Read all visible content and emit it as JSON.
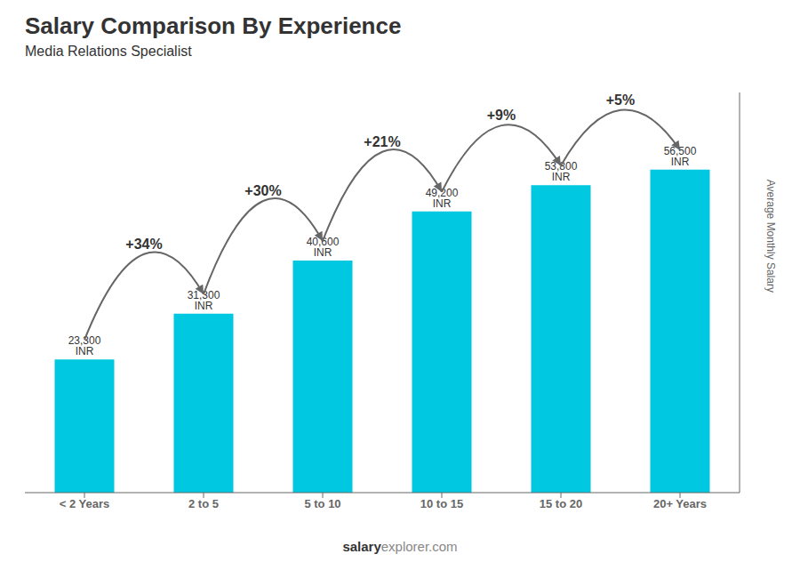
{
  "chart_data": {
    "type": "bar",
    "title": "Salary Comparison By Experience",
    "subtitle": "Media Relations Specialist",
    "y_label": "Average Monthly Salary",
    "categories": [
      "< 2 Years",
      "2 to 5",
      "5 to 10",
      "10 to 15",
      "15 to 20",
      "20+ Years"
    ],
    "values": [
      23300,
      31300,
      40600,
      49200,
      53800,
      56500
    ],
    "value_labels": [
      "23,300 INR",
      "31,300 INR",
      "40,600 INR",
      "49,200 INR",
      "53,800 INR",
      "56,500 INR"
    ],
    "data_labels": true,
    "color": "#00c8e0",
    "ylim": [
      0,
      70000
    ],
    "grid": false,
    "tick_labels": "x",
    "annotations": [
      {
        "text": "+34%",
        "from": "< 2 Years",
        "to": "2 to 5"
      },
      {
        "text": "+30%",
        "from": "2 to 5",
        "to": "5 to 10"
      },
      {
        "text": "+21%",
        "from": "5 to 10",
        "to": "10 to 15"
      },
      {
        "text": "+9%",
        "from": "10 to 15",
        "to": "15 to 20"
      },
      {
        "text": "+5%",
        "from": "15 to 20",
        "to": "20+ Years"
      }
    ],
    "watermark": [
      "salary",
      "explorer.com"
    ]
  }
}
